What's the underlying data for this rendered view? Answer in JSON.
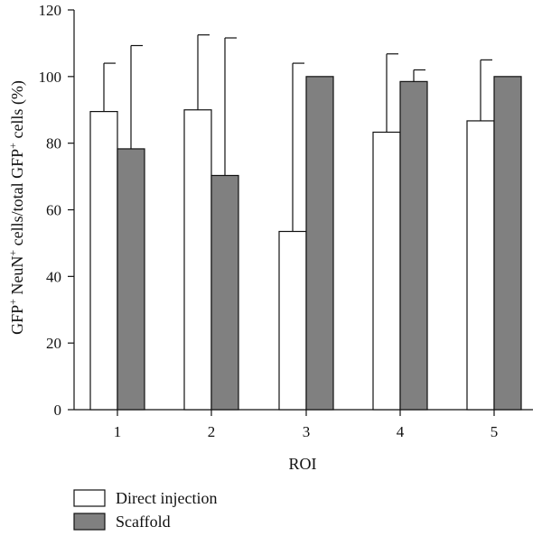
{
  "chart_data": {
    "type": "bar",
    "xlabel": "ROI",
    "ylabel_parts": [
      "GFP",
      "+",
      " NeuN",
      "+",
      " cells/total GFP",
      "+",
      " cells (%)"
    ],
    "categories": [
      "1",
      "2",
      "3",
      "4",
      "5"
    ],
    "ylim": [
      0,
      120
    ],
    "yticks": [
      "0",
      "20",
      "40",
      "60",
      "80",
      "100",
      "120"
    ],
    "series": [
      {
        "name": "Direct injection",
        "color": "#ffffff",
        "values": [
          89.5,
          90,
          53.5,
          83.3,
          86.7
        ],
        "error": [
          14.5,
          22.5,
          50.5,
          23.5,
          18.3
        ]
      },
      {
        "name": "Scaffold",
        "color": "#808080",
        "values": [
          78.3,
          70.3,
          100,
          98.5,
          100
        ],
        "error": [
          31,
          41.3,
          0,
          3.5,
          0
        ]
      }
    ],
    "error_bars": "upper",
    "grid": false,
    "legend_position": "bottom-left"
  }
}
